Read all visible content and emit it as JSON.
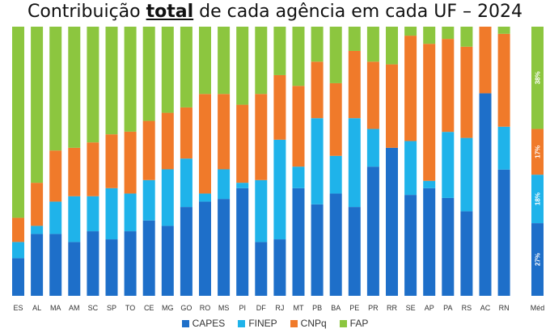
{
  "chart_data": {
    "type": "bar",
    "stacked": true,
    "normalized": true,
    "title_parts": [
      "Contribuição ",
      "total",
      " de cada agência em cada UF – 2024"
    ],
    "xlabel": "",
    "ylabel": "",
    "ylim": [
      0,
      100
    ],
    "grid": false,
    "legend_position": "bottom",
    "categories": [
      "ES",
      "AL",
      "MA",
      "AM",
      "SC",
      "SP",
      "TO",
      "CE",
      "MG",
      "GO",
      "RO",
      "MS",
      "PI",
      "DF",
      "RJ",
      "MT",
      "PB",
      "BA",
      "PE",
      "PR",
      "RR",
      "SE",
      "AP",
      "PA",
      "RS",
      "AC",
      "RN",
      "Méd"
    ],
    "series": [
      {
        "name": "CAPES",
        "color": "#1E6FC9",
        "values": [
          14,
          23,
          23,
          20,
          24,
          21,
          24,
          28,
          26,
          33,
          35,
          36,
          40,
          20,
          21,
          40,
          34,
          38,
          33,
          48,
          55,
          45,
          44,
          40,
          38,
          76,
          53,
          27
        ]
      },
      {
        "name": "FINEP",
        "color": "#1FB3EA",
        "values": [
          6,
          3,
          12,
          17,
          13,
          19,
          14,
          15,
          21,
          18,
          3,
          11,
          2,
          23,
          37,
          8,
          32,
          14,
          33,
          14,
          0,
          24,
          3,
          27,
          33,
          0,
          18,
          18
        ]
      },
      {
        "name": "CNPq",
        "color": "#F07A2A",
        "values": [
          9,
          16,
          19,
          18,
          20,
          20,
          23,
          22,
          21,
          19,
          37,
          28,
          29,
          32,
          24,
          30,
          21,
          27,
          25,
          25,
          31,
          47,
          56,
          38,
          41,
          25,
          39,
          17
        ]
      },
      {
        "name": "FAP",
        "color": "#8CC63F",
        "values": [
          71,
          58,
          46,
          45,
          43,
          40,
          39,
          35,
          32,
          30,
          25,
          25,
          29,
          25,
          18,
          22,
          13,
          21,
          9,
          13,
          14,
          4,
          7,
          5,
          9,
          0,
          3,
          38
        ]
      }
    ],
    "data_labels": {
      "Méd": [
        "27%",
        "18%",
        "17%",
        "38%"
      ]
    }
  }
}
